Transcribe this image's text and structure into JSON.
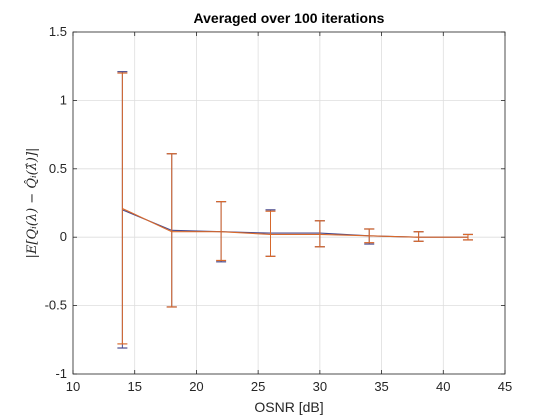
{
  "chart_data": {
    "type": "line",
    "title": "Averaged over 100 iterations",
    "xlabel": "OSNR [dB]",
    "ylabel": "|E[Qᵢ(λ) − Q̂ᵢ(λ̂)]|",
    "xlim": [
      10,
      45
    ],
    "ylim": [
      -1,
      1.5
    ],
    "xticks": [
      "10",
      "15",
      "20",
      "25",
      "30",
      "35",
      "40",
      "45"
    ],
    "yticks": [
      "-1",
      "-0.5",
      "0",
      "0.5",
      "1",
      "1.5"
    ],
    "grid": true,
    "series": [
      {
        "color": "#4a4a8c",
        "x": [
          14,
          18,
          22,
          26,
          30,
          34,
          38,
          42
        ],
        "y": [
          0.2,
          0.05,
          0.04,
          0.03,
          0.03,
          0.01,
          0.0,
          0.0
        ],
        "lower": [
          -0.81,
          -0.51,
          -0.18,
          -0.14,
          -0.07,
          -0.05,
          -0.03,
          -0.02
        ],
        "upper": [
          1.21,
          0.61,
          0.26,
          0.2,
          0.12,
          0.06,
          0.04,
          0.02
        ]
      },
      {
        "color": "#d9692b",
        "x": [
          14,
          18,
          22,
          26,
          30,
          34,
          38,
          42
        ],
        "y": [
          0.21,
          0.04,
          0.04,
          0.02,
          0.02,
          0.01,
          0.0,
          0.0
        ],
        "lower": [
          -0.78,
          -0.51,
          -0.17,
          -0.14,
          -0.07,
          -0.04,
          -0.03,
          -0.02
        ],
        "upper": [
          1.2,
          0.61,
          0.26,
          0.19,
          0.12,
          0.06,
          0.04,
          0.02
        ]
      }
    ]
  }
}
